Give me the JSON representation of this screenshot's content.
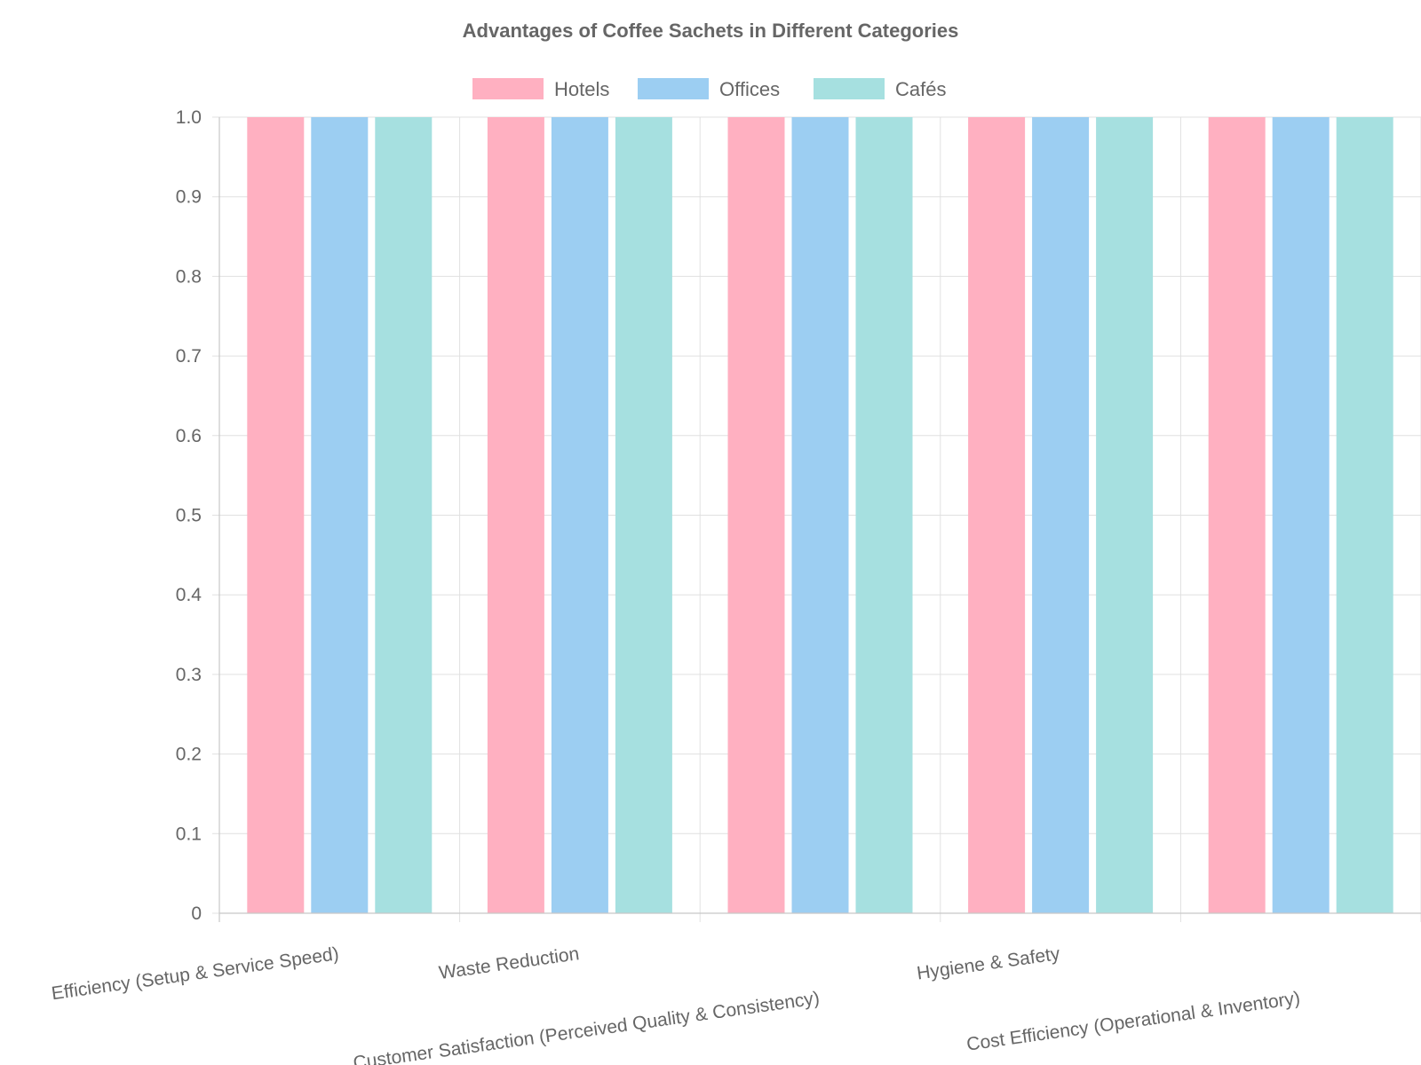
{
  "chart_data": {
    "type": "bar",
    "title": "Advantages of Coffee Sachets in Different Categories",
    "xlabel": "",
    "ylabel": "",
    "ylim": [
      0,
      1.0
    ],
    "yticks": [
      "0",
      "0.1",
      "0.2",
      "0.3",
      "0.4",
      "0.5",
      "0.6",
      "0.7",
      "0.8",
      "0.9",
      "1.0"
    ],
    "grid": true,
    "legend_position": "top-center",
    "categories": [
      "Efficiency (Setup & Service Speed)",
      "Waste Reduction",
      "Customer Satisfaction (Perceived Quality & Consistency)",
      "Hygiene & Safety",
      "Cost Efficiency (Operational & Inventory)"
    ],
    "series": [
      {
        "name": "Hotels",
        "color": "#ffb0c1",
        "values": [
          1.0,
          1.0,
          1.0,
          1.0,
          1.0
        ]
      },
      {
        "name": "Offices",
        "color": "#9ccef2",
        "values": [
          1.0,
          1.0,
          1.0,
          1.0,
          1.0
        ]
      },
      {
        "name": "Cafés",
        "color": "#a6e0e0",
        "values": [
          1.0,
          1.0,
          1.0,
          1.0,
          1.0
        ]
      }
    ]
  }
}
